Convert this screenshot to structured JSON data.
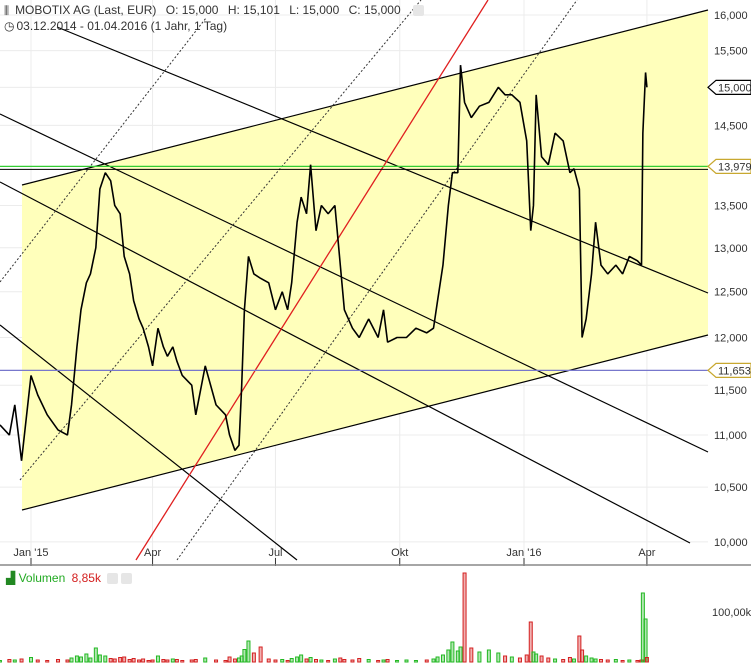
{
  "header": {
    "title": "MOBOTIX AG (Last, EUR)",
    "open": "O: 15,000",
    "high": "H: 15,101",
    "low": "L: 15,000",
    "close": "C: 15,000",
    "range": "03.12.2014 - 01.04.2016 (1 Jahr, 1 Tag)",
    "icons": [
      "candlestick-icon",
      "clock-icon",
      "settings-icon"
    ]
  },
  "volume_panel": {
    "label": "Volumen",
    "value": "8,85k",
    "tick": "100,00k",
    "up_color": "#22b822",
    "down_color": "#d42020"
  },
  "chart_data": {
    "type": "line",
    "title": "MOBOTIX AG (Last, EUR)",
    "y_scale": "log",
    "ylim": [
      10000,
      16000
    ],
    "y_ticks": [
      "16,000",
      "15,500",
      "15,000",
      "14,500",
      "13,500",
      "13,000",
      "12,500",
      "12,000",
      "11,500",
      "11,000",
      "10,500",
      "10,000"
    ],
    "x_ticks": [
      {
        "date": "2015-01-01",
        "label": "Jan '15"
      },
      {
        "date": "2015-04-01",
        "label": "Apr"
      },
      {
        "date": "2015-07-01",
        "label": "Jul"
      },
      {
        "date": "2015-10-01",
        "label": "Okt"
      },
      {
        "date": "2016-01-01",
        "label": "Jan '16"
      },
      {
        "date": "2016-04-01",
        "label": "Apr"
      }
    ],
    "price_markers": [
      {
        "value": 15000,
        "label": "15,000",
        "color": "#000000",
        "line": false
      },
      {
        "value": 13979,
        "label": "13,979",
        "color": "#c8a830",
        "line": true,
        "line_color": "#33cc33"
      },
      {
        "value": 11653,
        "label": "11,653",
        "color": "#c8a830",
        "line": true,
        "line_color": "#7777cc"
      }
    ],
    "channel_fill": "#ffffbb",
    "grid": true,
    "series_columns": [
      "date",
      "close",
      "volume_k"
    ],
    "series": [
      [
        "2014-12-09",
        11100,
        3
      ],
      [
        "2014-12-16",
        11000,
        5
      ],
      [
        "2014-12-20",
        11300,
        4
      ],
      [
        "2014-12-25",
        10750,
        6
      ],
      [
        "2015-01-01",
        11600,
        9
      ],
      [
        "2015-01-06",
        11400,
        4
      ],
      [
        "2015-01-13",
        11200,
        3
      ],
      [
        "2015-01-21",
        11050,
        5
      ],
      [
        "2015-01-28",
        11000,
        4
      ],
      [
        "2015-01-31",
        11300,
        8
      ],
      [
        "2015-02-04",
        11900,
        12
      ],
      [
        "2015-02-07",
        12300,
        10
      ],
      [
        "2015-02-11",
        12600,
        16
      ],
      [
        "2015-02-14",
        12700,
        8
      ],
      [
        "2015-02-18",
        13000,
        28
      ],
      [
        "2015-02-21",
        13700,
        14
      ],
      [
        "2015-02-25",
        13900,
        12
      ],
      [
        "2015-03-01",
        13800,
        7
      ],
      [
        "2015-03-04",
        13500,
        6
      ],
      [
        "2015-03-08",
        13400,
        9
      ],
      [
        "2015-03-11",
        12900,
        10
      ],
      [
        "2015-03-15",
        12700,
        5
      ],
      [
        "2015-03-18",
        12400,
        7
      ],
      [
        "2015-03-22",
        12200,
        4
      ],
      [
        "2015-03-25",
        12100,
        6
      ],
      [
        "2015-03-29",
        11900,
        3
      ],
      [
        "2015-04-01",
        11700,
        4
      ],
      [
        "2015-04-05",
        12100,
        12
      ],
      [
        "2015-04-09",
        11900,
        5
      ],
      [
        "2015-04-12",
        11800,
        4
      ],
      [
        "2015-04-16",
        11900,
        6
      ],
      [
        "2015-04-19",
        11750,
        5
      ],
      [
        "2015-04-23",
        11600,
        3
      ],
      [
        "2015-04-30",
        11500,
        4
      ],
      [
        "2015-05-03",
        11200,
        5
      ],
      [
        "2015-05-10",
        11700,
        8
      ],
      [
        "2015-05-18",
        11300,
        4
      ],
      [
        "2015-05-25",
        11200,
        3
      ],
      [
        "2015-05-28",
        11000,
        10
      ],
      [
        "2015-06-01",
        10850,
        6
      ],
      [
        "2015-06-04",
        10900,
        8
      ],
      [
        "2015-06-06",
        11500,
        12
      ],
      [
        "2015-06-08",
        12300,
        25
      ],
      [
        "2015-06-11",
        12900,
        42
      ],
      [
        "2015-06-15",
        12700,
        18
      ],
      [
        "2015-06-20",
        12650,
        30
      ],
      [
        "2015-06-26",
        12600,
        6
      ],
      [
        "2015-07-01",
        12300,
        4
      ],
      [
        "2015-07-06",
        12500,
        5
      ],
      [
        "2015-07-10",
        12300,
        3
      ],
      [
        "2015-07-13",
        12600,
        7
      ],
      [
        "2015-07-17",
        13300,
        10
      ],
      [
        "2015-07-20",
        13600,
        14
      ],
      [
        "2015-07-24",
        13400,
        6
      ],
      [
        "2015-07-27",
        14000,
        9
      ],
      [
        "2015-07-31",
        13200,
        5
      ],
      [
        "2015-08-04",
        13500,
        4
      ],
      [
        "2015-08-09",
        13400,
        3
      ],
      [
        "2015-08-14",
        13500,
        6
      ],
      [
        "2015-08-18",
        12800,
        8
      ],
      [
        "2015-08-21",
        12300,
        5
      ],
      [
        "2015-08-27",
        12100,
        4
      ],
      [
        "2015-09-01",
        12000,
        7
      ],
      [
        "2015-09-08",
        12200,
        5
      ],
      [
        "2015-09-15",
        12000,
        3
      ],
      [
        "2015-09-19",
        12300,
        4
      ],
      [
        "2015-09-22",
        11950,
        5
      ],
      [
        "2015-09-29",
        12000,
        3
      ],
      [
        "2015-10-06",
        12000,
        4
      ],
      [
        "2015-10-13",
        12100,
        3
      ],
      [
        "2015-10-21",
        12050,
        4
      ],
      [
        "2015-10-26",
        12100,
        6
      ],
      [
        "2015-10-29",
        12400,
        10
      ],
      [
        "2015-11-02",
        12800,
        14
      ],
      [
        "2015-11-06",
        13500,
        24
      ],
      [
        "2015-11-09",
        13900,
        40
      ],
      [
        "2015-11-13",
        13900,
        22
      ],
      [
        "2015-11-15",
        15300,
        30
      ],
      [
        "2015-11-18",
        14800,
        178
      ],
      [
        "2015-11-23",
        14600,
        28
      ],
      [
        "2015-11-29",
        14750,
        20
      ],
      [
        "2015-12-06",
        14800,
        24
      ],
      [
        "2015-12-13",
        15000,
        18
      ],
      [
        "2015-12-18",
        14900,
        12
      ],
      [
        "2015-12-23",
        14900,
        10
      ],
      [
        "2015-12-29",
        14800,
        8
      ],
      [
        "2016-01-03",
        14300,
        14
      ],
      [
        "2016-01-06",
        13200,
        80
      ],
      [
        "2016-01-08",
        13500,
        20
      ],
      [
        "2016-01-10",
        14900,
        16
      ],
      [
        "2016-01-14",
        14100,
        12
      ],
      [
        "2016-01-19",
        14000,
        8
      ],
      [
        "2016-01-24",
        14400,
        6
      ],
      [
        "2016-01-30",
        14300,
        5
      ],
      [
        "2016-02-04",
        13900,
        9
      ],
      [
        "2016-02-07",
        13950,
        6
      ],
      [
        "2016-02-11",
        13700,
        52
      ],
      [
        "2016-02-13",
        12000,
        24
      ],
      [
        "2016-02-16",
        12200,
        12
      ],
      [
        "2016-02-20",
        12700,
        8
      ],
      [
        "2016-02-23",
        13300,
        6
      ],
      [
        "2016-02-27",
        12800,
        5
      ],
      [
        "2016-03-03",
        12700,
        4
      ],
      [
        "2016-03-09",
        12800,
        5
      ],
      [
        "2016-03-14",
        12700,
        3
      ],
      [
        "2016-03-19",
        12900,
        4
      ],
      [
        "2016-03-25",
        12850,
        3
      ],
      [
        "2016-03-28",
        12800,
        4
      ],
      [
        "2016-03-29",
        14400,
        138
      ],
      [
        "2016-03-31",
        15200,
        86
      ],
      [
        "2016-04-01",
        15000,
        9
      ]
    ]
  }
}
